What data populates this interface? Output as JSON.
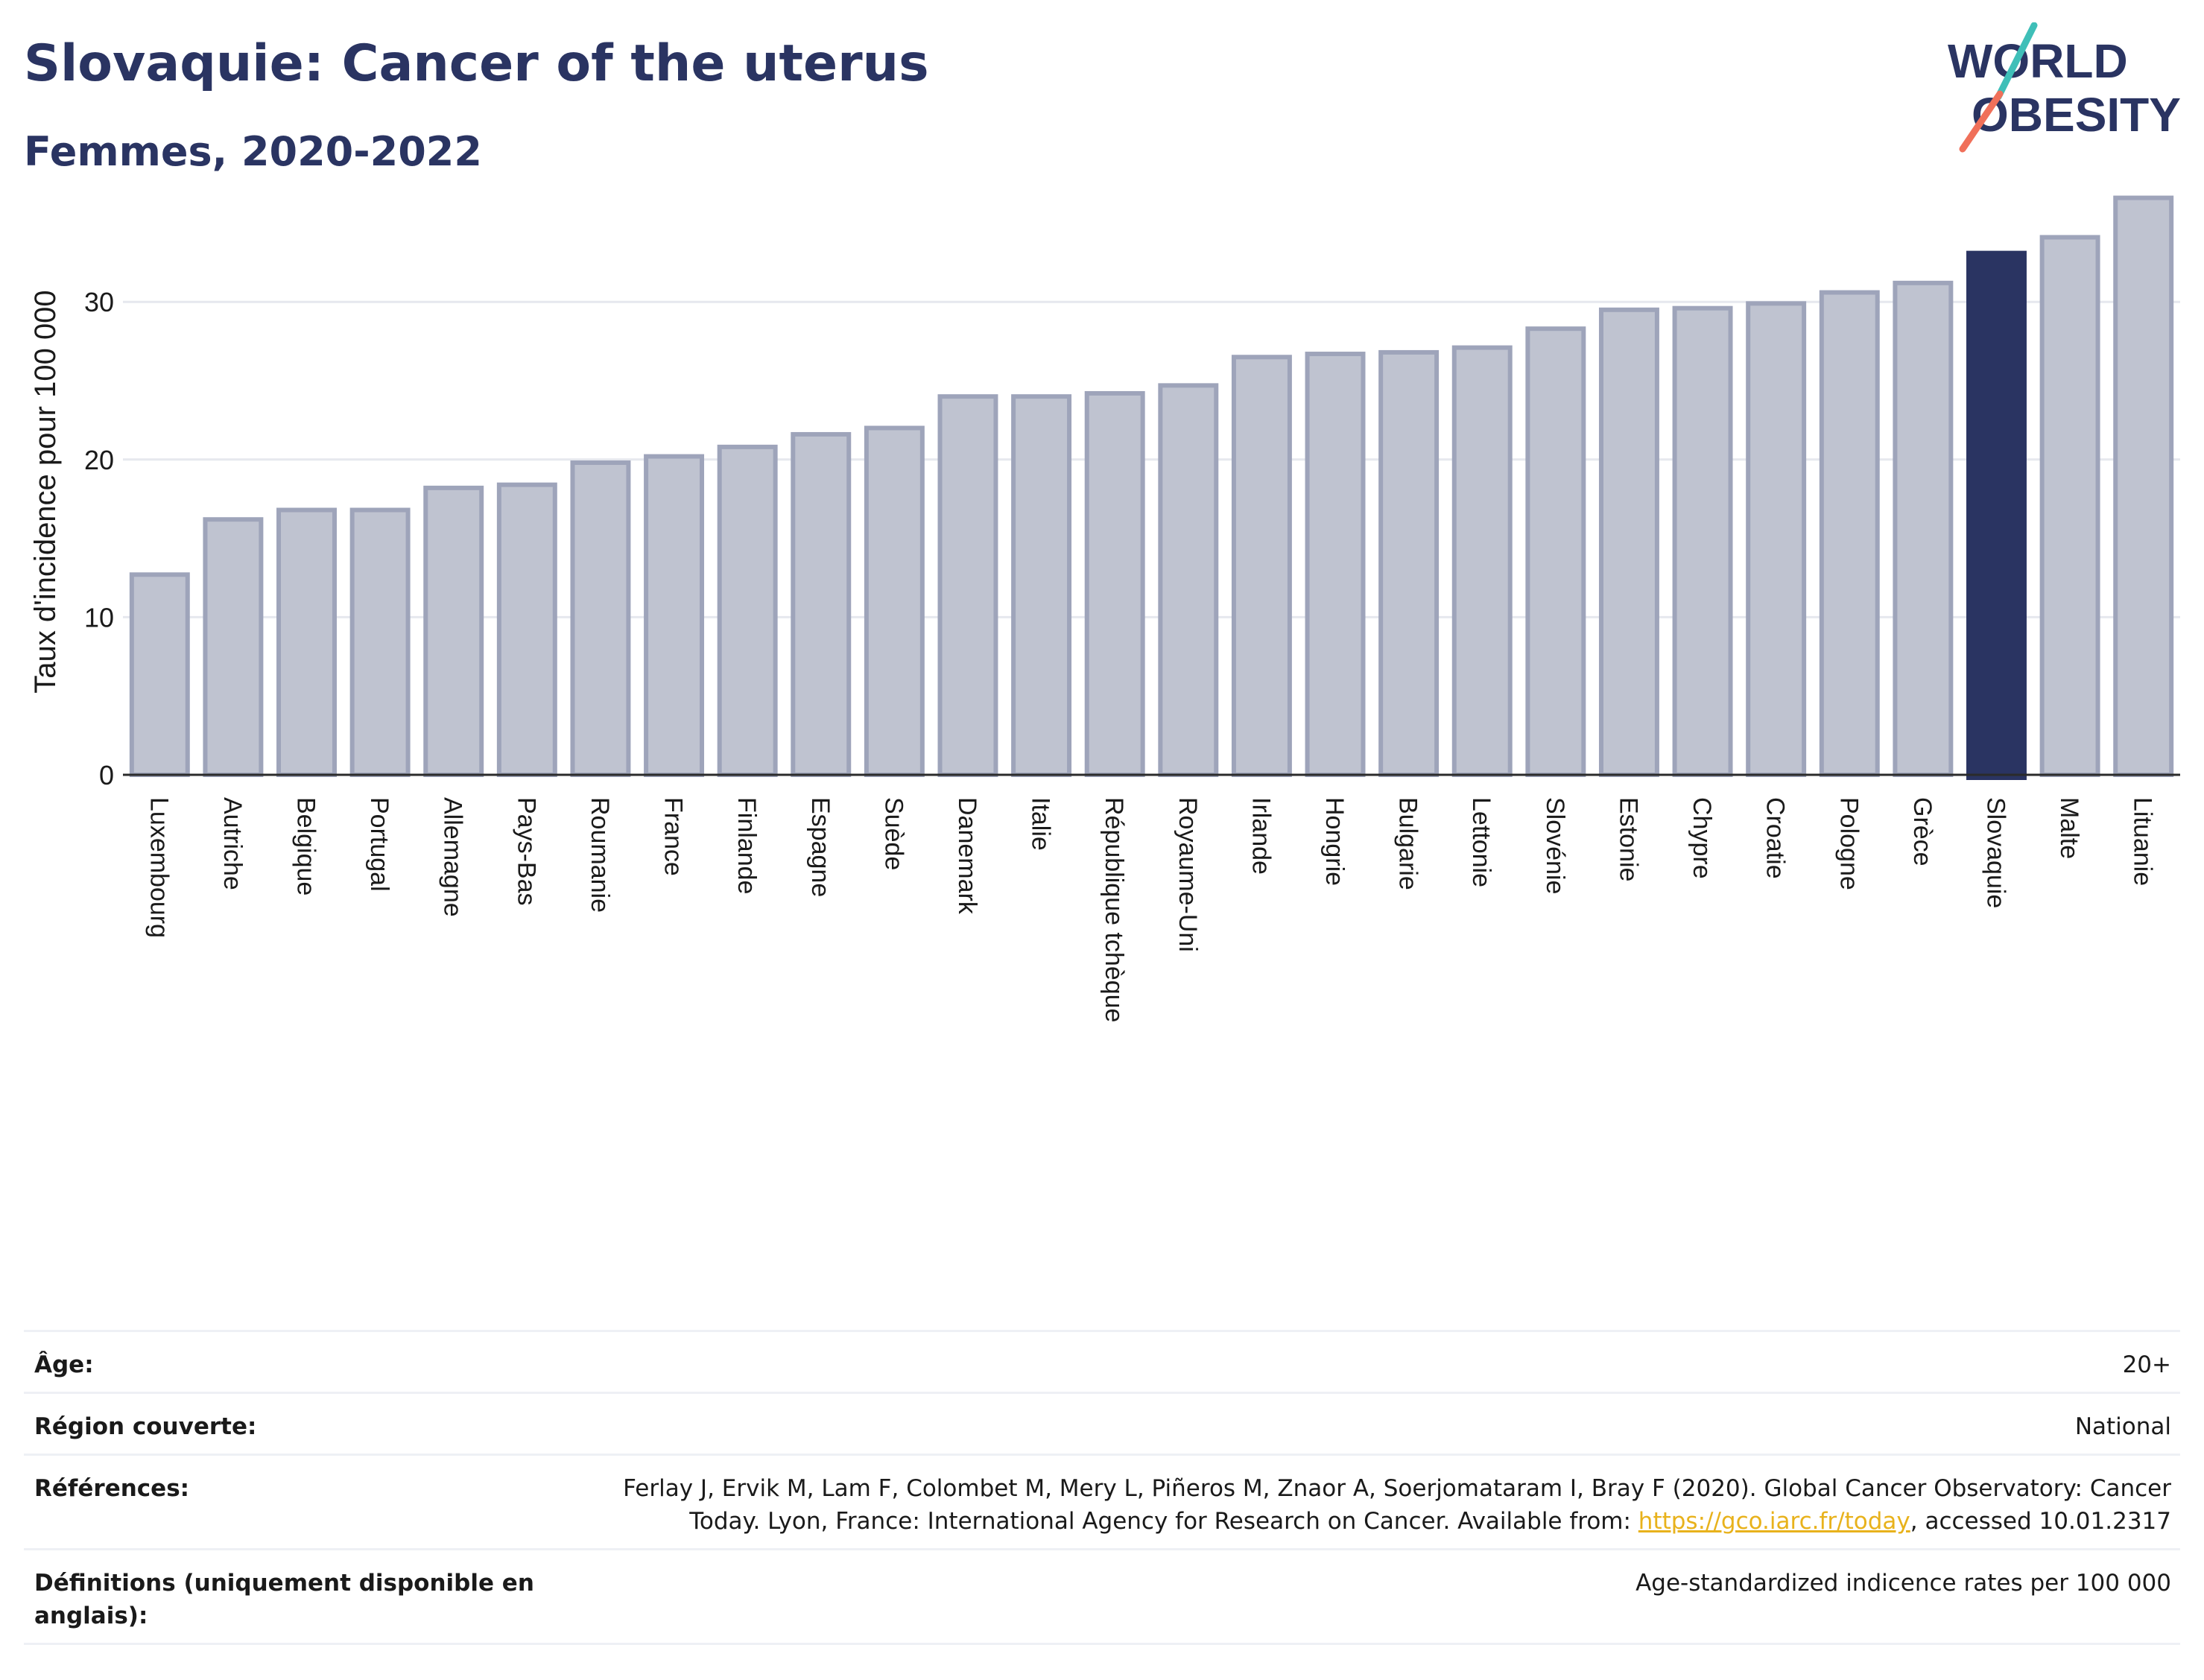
{
  "header": {
    "title": "Slovaquie: Cancer of the uterus",
    "subtitle": "Femmes, 2020-2022",
    "logo_line1": "WORLD",
    "logo_line2": "OBESITY"
  },
  "colors": {
    "bar": "#bfc3d0",
    "bar_border": "#9ea4ba",
    "highlight": "#2a3462",
    "axis_text": "#1a1a1a",
    "grid": "#e6e8ee",
    "logo_navy": "#2a3462",
    "logo_teal": "#3fbfb8",
    "logo_coral": "#f0705a",
    "link": "#e8b21c"
  },
  "chart_data": {
    "type": "bar",
    "ylabel": "Taux d'incidence pour 100 000",
    "xlabel": "",
    "ylim": [
      0,
      37
    ],
    "yticks": [
      0,
      10,
      20,
      30
    ],
    "grid": true,
    "highlight": "Slovaquie",
    "categories": [
      "Luxembourg",
      "Autriche",
      "Belgique",
      "Portugal",
      "Allemagne",
      "Pays-Bas",
      "Roumanie",
      "France",
      "Finlande",
      "Espagne",
      "Suède",
      "Danemark",
      "Italie",
      "République tchèque",
      "Royaume-Uni",
      "Irlande",
      "Hongrie",
      "Bulgarie",
      "Lettonie",
      "Slovénie",
      "Estonie",
      "Chypre",
      "Croatie",
      "Pologne",
      "Grèce",
      "Slovaquie",
      "Malte",
      "Lituanie"
    ],
    "values": [
      12.7,
      16.2,
      16.8,
      16.8,
      18.2,
      18.4,
      19.8,
      20.2,
      20.8,
      21.6,
      22.0,
      24.0,
      24.0,
      24.2,
      24.7,
      26.5,
      26.7,
      26.8,
      27.1,
      28.3,
      29.5,
      29.6,
      29.9,
      30.6,
      31.2,
      33.1,
      34.1,
      36.6
    ]
  },
  "meta": {
    "age_label": "Âge:",
    "age_value": "20+",
    "region_label": "Région couverte:",
    "region_value": "National",
    "references_label": "Références:",
    "references_value_line1": "Ferlay J, Ervik M, Lam F, Colombet M, Mery L, Piñeros M, Znaor A, Soerjomataram I, Bray F (2020). Global Cancer Observatory: Cancer",
    "references_value_line2_pre": "Today. Lyon, France: International Agency for Research on Cancer. Available from: ",
    "references_link": "https://gco.iarc.fr/today",
    "references_value_line2_post": ", accessed 10.01.2317",
    "definitions_label": "Définitions (uniquement disponible en anglais):",
    "definitions_value": "Age-standardized indicence rates per 100 000"
  }
}
